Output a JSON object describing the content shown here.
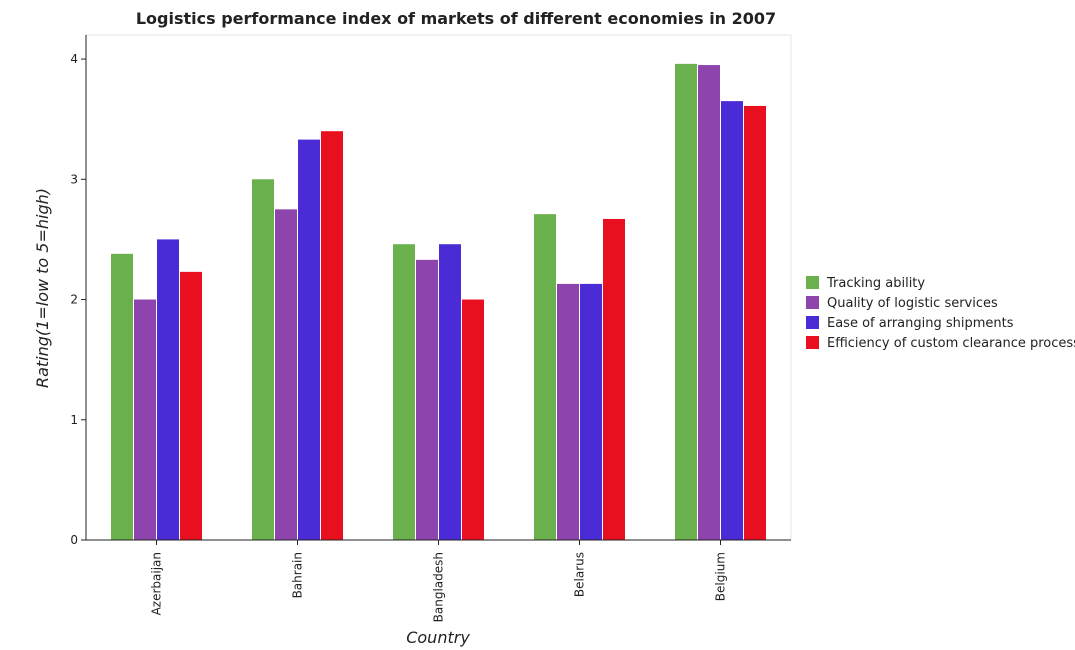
{
  "chart_data": {
    "type": "bar",
    "title": "Logistics performance index of markets of different economies in 2007",
    "xlabel": "Country",
    "ylabel": "Rating(1=low to 5=high)",
    "categories": [
      "Azerbaijan",
      "Bahrain",
      "Bangladesh",
      "Belarus",
      "Belgium"
    ],
    "ylim": [
      0,
      4.2
    ],
    "yticks": [
      "0",
      "1",
      "2",
      "3",
      "4"
    ],
    "grid": false,
    "legend_position": "right",
    "series": [
      {
        "name": "Tracking ability",
        "color": "#6ab04c",
        "values": [
          2.38,
          3.0,
          2.46,
          2.71,
          3.96
        ]
      },
      {
        "name": "Quality of logistic services",
        "color": "#8e44ad",
        "values": [
          2.0,
          2.75,
          2.33,
          2.13,
          3.95
        ]
      },
      {
        "name": "Ease of arranging shipments",
        "color": "#4b2bd6",
        "values": [
          2.5,
          3.33,
          2.46,
          2.13,
          3.65
        ]
      },
      {
        "name": "Efficiency of custom clearance process",
        "color": "#e8101e",
        "values": [
          2.23,
          3.4,
          2.0,
          2.67,
          3.61
        ]
      }
    ]
  }
}
